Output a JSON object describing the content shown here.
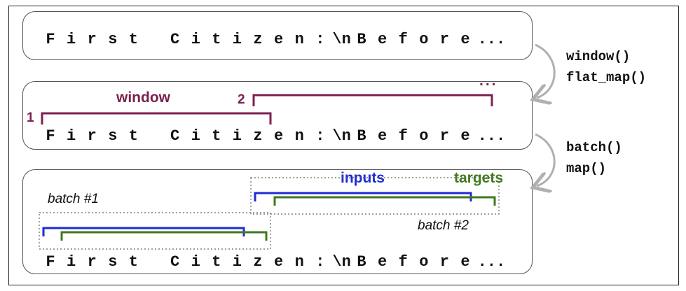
{
  "sequence_tokens": [
    "F",
    "i",
    "r",
    "s",
    "t",
    "",
    "C",
    "i",
    "t",
    "i",
    "z",
    "e",
    "n",
    ":",
    "\\n",
    "B",
    "e",
    "f",
    "o",
    "r",
    "e",
    "..."
  ],
  "ops_step1": [
    "window()",
    "flat_map()"
  ],
  "ops_step2": [
    "batch()",
    "map()"
  ],
  "window_panel": {
    "window_label": "window",
    "first_index": "1",
    "second_index": "2",
    "ellipsis": "..."
  },
  "batch_panel": {
    "batch1_label": "batch #1",
    "batch2_label": "batch #2",
    "inputs_label": "inputs",
    "targets_label": "targets"
  },
  "colors": {
    "window": "#7b2150",
    "inputs": "#1f2bd6",
    "targets": "#3f7a1c",
    "arrow": "#b0b0b0"
  }
}
